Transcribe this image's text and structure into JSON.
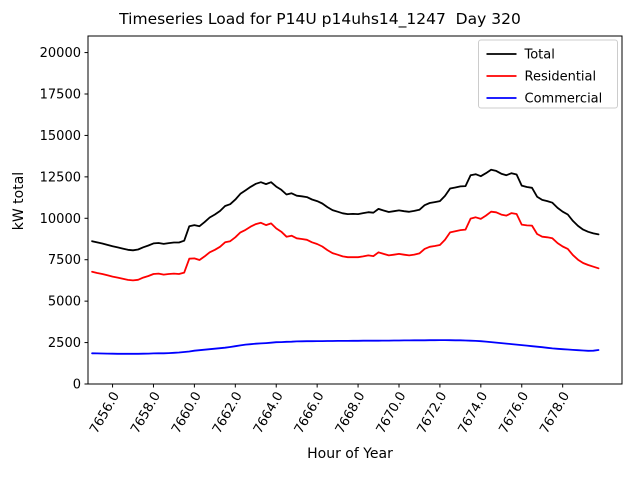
{
  "figure": {
    "title": "Timeseries Load for P14U p14uhs14_1247  Day 320"
  },
  "axes": {
    "xlabel": "Hour of Year",
    "ylabel": "kW total"
  },
  "legend": {
    "position": "upper right",
    "entries": [
      {
        "label": "Total",
        "color": "#000000"
      },
      {
        "label": "Residential",
        "color": "#ff0000"
      },
      {
        "label": "Commercial",
        "color": "#0000ff"
      }
    ]
  },
  "chart_data": {
    "type": "line",
    "title": "Timeseries Load for P14U p14uhs14_1247  Day 320",
    "xlabel": "Hour of Year",
    "ylabel": "kW total",
    "grid": false,
    "legend_position": "upper right",
    "xlim": [
      7654.8,
      7680.9
    ],
    "ylim": [
      0,
      21000
    ],
    "x_ticks": [
      7656,
      7658,
      7660,
      7662,
      7664,
      7666,
      7668,
      7670,
      7672,
      7674,
      7676,
      7678
    ],
    "x_tick_labels": [
      "7656.0",
      "7658.0",
      "7660.0",
      "7662.0",
      "7664.0",
      "7666.0",
      "7668.0",
      "7670.0",
      "7672.0",
      "7674.0",
      "7676.0",
      "7678.0"
    ],
    "x_tick_rotation": 60,
    "y_ticks": [
      0,
      2500,
      5000,
      7500,
      10000,
      12500,
      15000,
      17500,
      20000
    ],
    "y_tick_labels": [
      "0",
      "2500",
      "5000",
      "7500",
      "10000",
      "12500",
      "15000",
      "17500",
      "20000"
    ],
    "x": [
      7655.0,
      7655.25,
      7655.5,
      7655.75,
      7656.0,
      7656.25,
      7656.5,
      7656.75,
      7657.0,
      7657.25,
      7657.5,
      7657.75,
      7658.0,
      7658.25,
      7658.5,
      7658.75,
      7659.0,
      7659.25,
      7659.5,
      7659.75,
      7660.0,
      7660.25,
      7660.5,
      7660.75,
      7661.0,
      7661.25,
      7661.5,
      7661.75,
      7662.0,
      7662.25,
      7662.5,
      7662.75,
      7663.0,
      7663.25,
      7663.5,
      7663.75,
      7664.0,
      7664.25,
      7664.5,
      7664.75,
      7665.0,
      7665.25,
      7665.5,
      7665.75,
      7666.0,
      7666.25,
      7666.5,
      7666.75,
      7667.0,
      7667.25,
      7667.5,
      7667.75,
      7668.0,
      7668.25,
      7668.5,
      7668.75,
      7669.0,
      7669.25,
      7669.5,
      7669.75,
      7670.0,
      7670.25,
      7670.5,
      7670.75,
      7671.0,
      7671.25,
      7671.5,
      7671.75,
      7672.0,
      7672.25,
      7672.5,
      7672.75,
      7673.0,
      7673.25,
      7673.5,
      7673.75,
      7674.0,
      7674.25,
      7674.5,
      7674.75,
      7675.0,
      7675.25,
      7675.5,
      7675.75,
      7676.0,
      7676.25,
      7676.5,
      7676.75,
      7677.0,
      7677.25,
      7677.5,
      7677.75,
      7678.0,
      7678.25,
      7678.5,
      7678.75,
      7679.0,
      7679.25,
      7679.5,
      7679.75
    ],
    "series": [
      {
        "name": "Total",
        "color": "#000000",
        "values": [
          8620,
          8545,
          8480,
          8395,
          8310,
          8245,
          8170,
          8100,
          8070,
          8115,
          8250,
          8355,
          8485,
          8510,
          8455,
          8505,
          8540,
          8540,
          8650,
          9520,
          9590,
          9520,
          9770,
          10050,
          10230,
          10440,
          10740,
          10850,
          11130,
          11480,
          11680,
          11900,
          12080,
          12180,
          12060,
          12180,
          11910,
          11720,
          11435,
          11505,
          11360,
          11325,
          11280,
          11135,
          11040,
          10890,
          10675,
          10495,
          10400,
          10300,
          10250,
          10265,
          10255,
          10310,
          10370,
          10335,
          10565,
          10470,
          10380,
          10425,
          10475,
          10430,
          10390,
          10445,
          10515,
          10790,
          10925,
          10975,
          11040,
          11350,
          11795,
          11860,
          11925,
          11945,
          12595,
          12660,
          12540,
          12720,
          12930,
          12860,
          12690,
          12600,
          12720,
          12640,
          11970,
          11890,
          11840,
          11300,
          11110,
          11035,
          10940,
          10625,
          10400,
          10230,
          9840,
          9540,
          9320,
          9185,
          9090,
          9030
        ]
      },
      {
        "name": "Residential",
        "color": "#ff0000",
        "values": [
          6770,
          6700,
          6640,
          6560,
          6480,
          6420,
          6350,
          6280,
          6250,
          6290,
          6420,
          6520,
          6640,
          6660,
          6600,
          6640,
          6660,
          6640,
          6720,
          7560,
          7580,
          7480,
          7700,
          7950,
          8100,
          8280,
          8550,
          8620,
          8850,
          9150,
          9300,
          9500,
          9650,
          9730,
          9590,
          9690,
          9390,
          9190,
          8890,
          8950,
          8790,
          8750,
          8700,
          8550,
          8450,
          8300,
          8080,
          7900,
          7800,
          7700,
          7650,
          7660,
          7650,
          7700,
          7760,
          7720,
          7950,
          7850,
          7760,
          7800,
          7850,
          7800,
          7760,
          7810,
          7880,
          8150,
          8280,
          8330,
          8390,
          8700,
          9150,
          9220,
          9290,
          9320,
          9980,
          10060,
          9960,
          10160,
          10400,
          10360,
          10220,
          10160,
          10310,
          10260,
          9620,
          9570,
          9560,
          9050,
          8890,
          8850,
          8790,
          8500,
          8300,
          8150,
          7780,
          7500,
          7300,
          7180,
          7080,
          6980
        ]
      },
      {
        "name": "Commercial",
        "color": "#0000ff",
        "values": [
          1850,
          1845,
          1840,
          1835,
          1830,
          1825,
          1820,
          1820,
          1820,
          1825,
          1830,
          1835,
          1845,
          1850,
          1855,
          1865,
          1880,
          1900,
          1930,
          1960,
          2010,
          2040,
          2070,
          2100,
          2130,
          2160,
          2190,
          2230,
          2280,
          2330,
          2380,
          2400,
          2430,
          2450,
          2470,
          2490,
          2520,
          2530,
          2545,
          2555,
          2570,
          2575,
          2580,
          2585,
          2590,
          2590,
          2595,
          2595,
          2600,
          2600,
          2600,
          2605,
          2605,
          2610,
          2610,
          2615,
          2615,
          2620,
          2620,
          2625,
          2625,
          2630,
          2630,
          2635,
          2635,
          2640,
          2645,
          2645,
          2650,
          2650,
          2645,
          2640,
          2635,
          2625,
          2615,
          2600,
          2580,
          2560,
          2530,
          2500,
          2470,
          2440,
          2410,
          2380,
          2350,
          2320,
          2280,
          2250,
          2220,
          2185,
          2150,
          2125,
          2100,
          2080,
          2060,
          2040,
          2020,
          2005,
          2010,
          2050
        ]
      }
    ]
  }
}
